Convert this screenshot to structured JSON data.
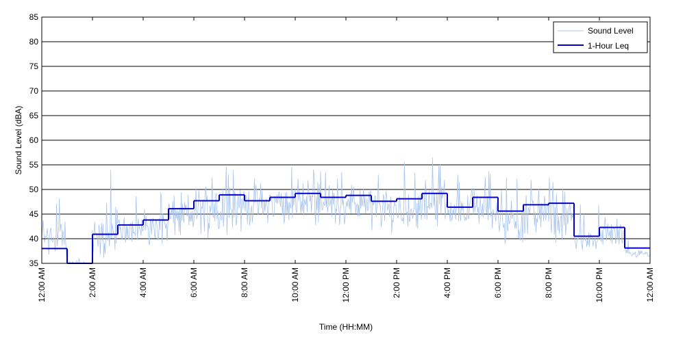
{
  "chart_data": {
    "type": "line",
    "title": "",
    "xlabel": "Time (HH:MM)",
    "ylabel": "Sound Level (dBA)",
    "ylim": [
      35,
      85
    ],
    "yticks": [
      35,
      40,
      45,
      50,
      55,
      60,
      65,
      70,
      75,
      80,
      85
    ],
    "xlim_hours": [
      0,
      24
    ],
    "xticks": [
      {
        "hour": 0,
        "label": "12:00 AM"
      },
      {
        "hour": 2,
        "label": "2:00 AM"
      },
      {
        "hour": 4,
        "label": "4:00 AM"
      },
      {
        "hour": 6,
        "label": "6:00 AM"
      },
      {
        "hour": 8,
        "label": "8:00 AM"
      },
      {
        "hour": 10,
        "label": "10:00 AM"
      },
      {
        "hour": 12,
        "label": "12:00 PM"
      },
      {
        "hour": 14,
        "label": "2:00 PM"
      },
      {
        "hour": 16,
        "label": "4:00 PM"
      },
      {
        "hour": 18,
        "label": "6:00 PM"
      },
      {
        "hour": 20,
        "label": "8:00 PM"
      },
      {
        "hour": 22,
        "label": "10:00 PM"
      },
      {
        "hour": 24,
        "label": "12:00 AM"
      }
    ],
    "grid": "horizontal",
    "legend_position": "top-right",
    "series": [
      {
        "name": "Sound Level",
        "color": "#a8c4ee",
        "style": "thin noisy line",
        "hourly_typical": [
          {
            "hour": 0,
            "min": 35,
            "max": 46,
            "peak": 50
          },
          {
            "hour": 1,
            "min": 33,
            "max": 36,
            "peak": 36
          },
          {
            "hour": 2,
            "min": 35,
            "max": 45,
            "peak": 54
          },
          {
            "hour": 3,
            "min": 39,
            "max": 45,
            "peak": 49
          },
          {
            "hour": 4,
            "min": 38,
            "max": 47,
            "peak": 51
          },
          {
            "hour": 5,
            "min": 39,
            "max": 50,
            "peak": 52
          },
          {
            "hour": 6,
            "min": 40,
            "max": 52,
            "peak": 54
          },
          {
            "hour": 7,
            "min": 40,
            "max": 53,
            "peak": 56
          },
          {
            "hour": 8,
            "min": 42,
            "max": 52,
            "peak": 55
          },
          {
            "hour": 9,
            "min": 42,
            "max": 52,
            "peak": 57
          },
          {
            "hour": 10,
            "min": 42,
            "max": 53,
            "peak": 55
          },
          {
            "hour": 11,
            "min": 42,
            "max": 52,
            "peak": 55
          },
          {
            "hour": 12,
            "min": 42,
            "max": 52,
            "peak": 59
          },
          {
            "hour": 13,
            "min": 41,
            "max": 51,
            "peak": 54
          },
          {
            "hour": 14,
            "min": 41,
            "max": 51,
            "peak": 56
          },
          {
            "hour": 15,
            "min": 42,
            "max": 53,
            "peak": 57
          },
          {
            "hour": 16,
            "min": 42,
            "max": 50,
            "peak": 53
          },
          {
            "hour": 17,
            "min": 41,
            "max": 51,
            "peak": 54
          },
          {
            "hour": 18,
            "min": 38,
            "max": 49,
            "peak": 54
          },
          {
            "hour": 19,
            "min": 40,
            "max": 50,
            "peak": 52
          },
          {
            "hour": 20,
            "min": 38,
            "max": 51,
            "peak": 57
          },
          {
            "hour": 21,
            "min": 37,
            "max": 42,
            "peak": 47
          },
          {
            "hour": 22,
            "min": 37,
            "max": 45,
            "peak": 48
          },
          {
            "hour": 23,
            "min": 36,
            "max": 38,
            "peak": 40
          }
        ]
      },
      {
        "name": "1-Hour Leq",
        "color": "#0000c8",
        "style": "step",
        "x_hours": [
          0,
          1,
          2,
          3,
          4,
          5,
          6,
          7,
          8,
          9,
          10,
          11,
          12,
          13,
          14,
          15,
          16,
          17,
          18,
          19,
          20,
          21,
          22,
          23
        ],
        "values": [
          38.0,
          34.0,
          40.9,
          42.8,
          43.8,
          46.1,
          47.7,
          48.9,
          47.7,
          48.4,
          49.2,
          48.4,
          48.8,
          47.6,
          48.1,
          49.2,
          46.4,
          48.4,
          45.6,
          46.9,
          47.2,
          40.5,
          42.3,
          38.1
        ]
      }
    ]
  }
}
